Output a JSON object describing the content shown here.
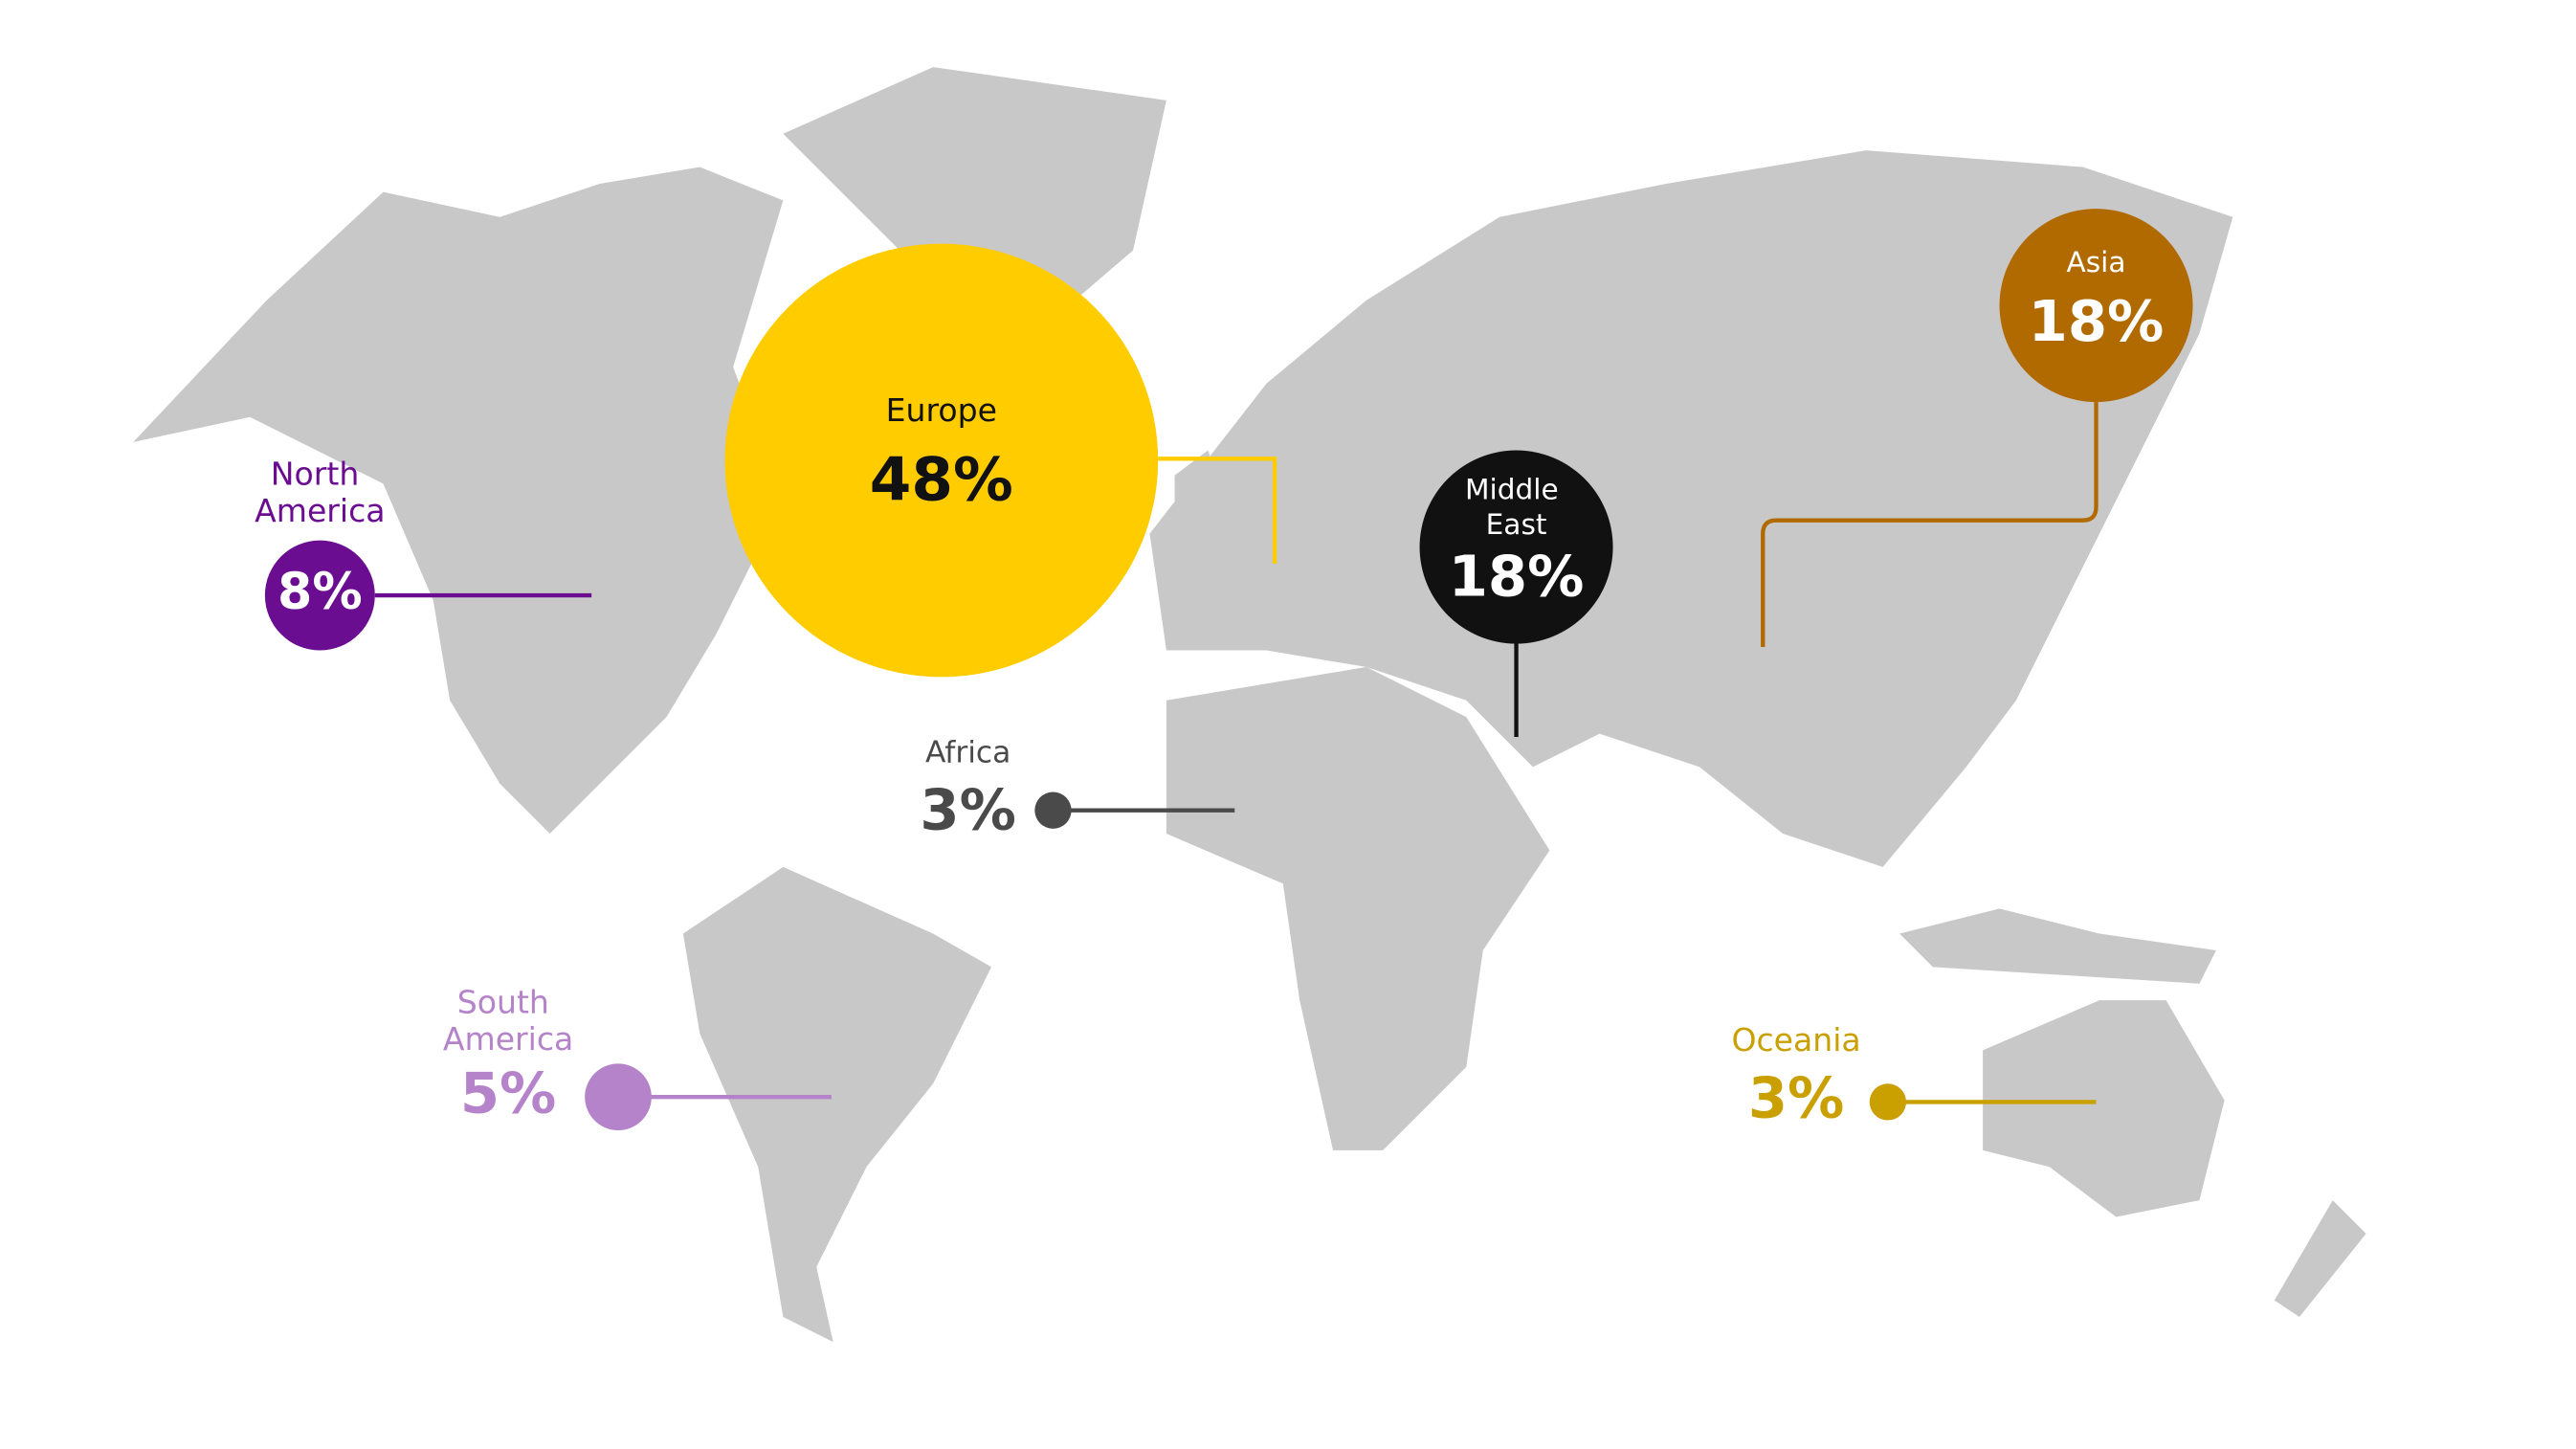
{
  "regions": [
    {
      "name": "North America",
      "share": "8%",
      "color": "#6a0d91"
    },
    {
      "name": "Europe",
      "share": "48%",
      "color": "#ffcc00"
    },
    {
      "name": "Middle East",
      "share": "18%",
      "color": "#111111"
    },
    {
      "name": "Asia",
      "share": "18%",
      "color": "#b06a00"
    },
    {
      "name": "Africa",
      "share": "3%",
      "color": "#4a4a4a"
    },
    {
      "name": "South America",
      "share": "5%",
      "color": "#b583c9"
    },
    {
      "name": "Oceania",
      "share": "3%",
      "color": "#c9a000"
    }
  ]
}
